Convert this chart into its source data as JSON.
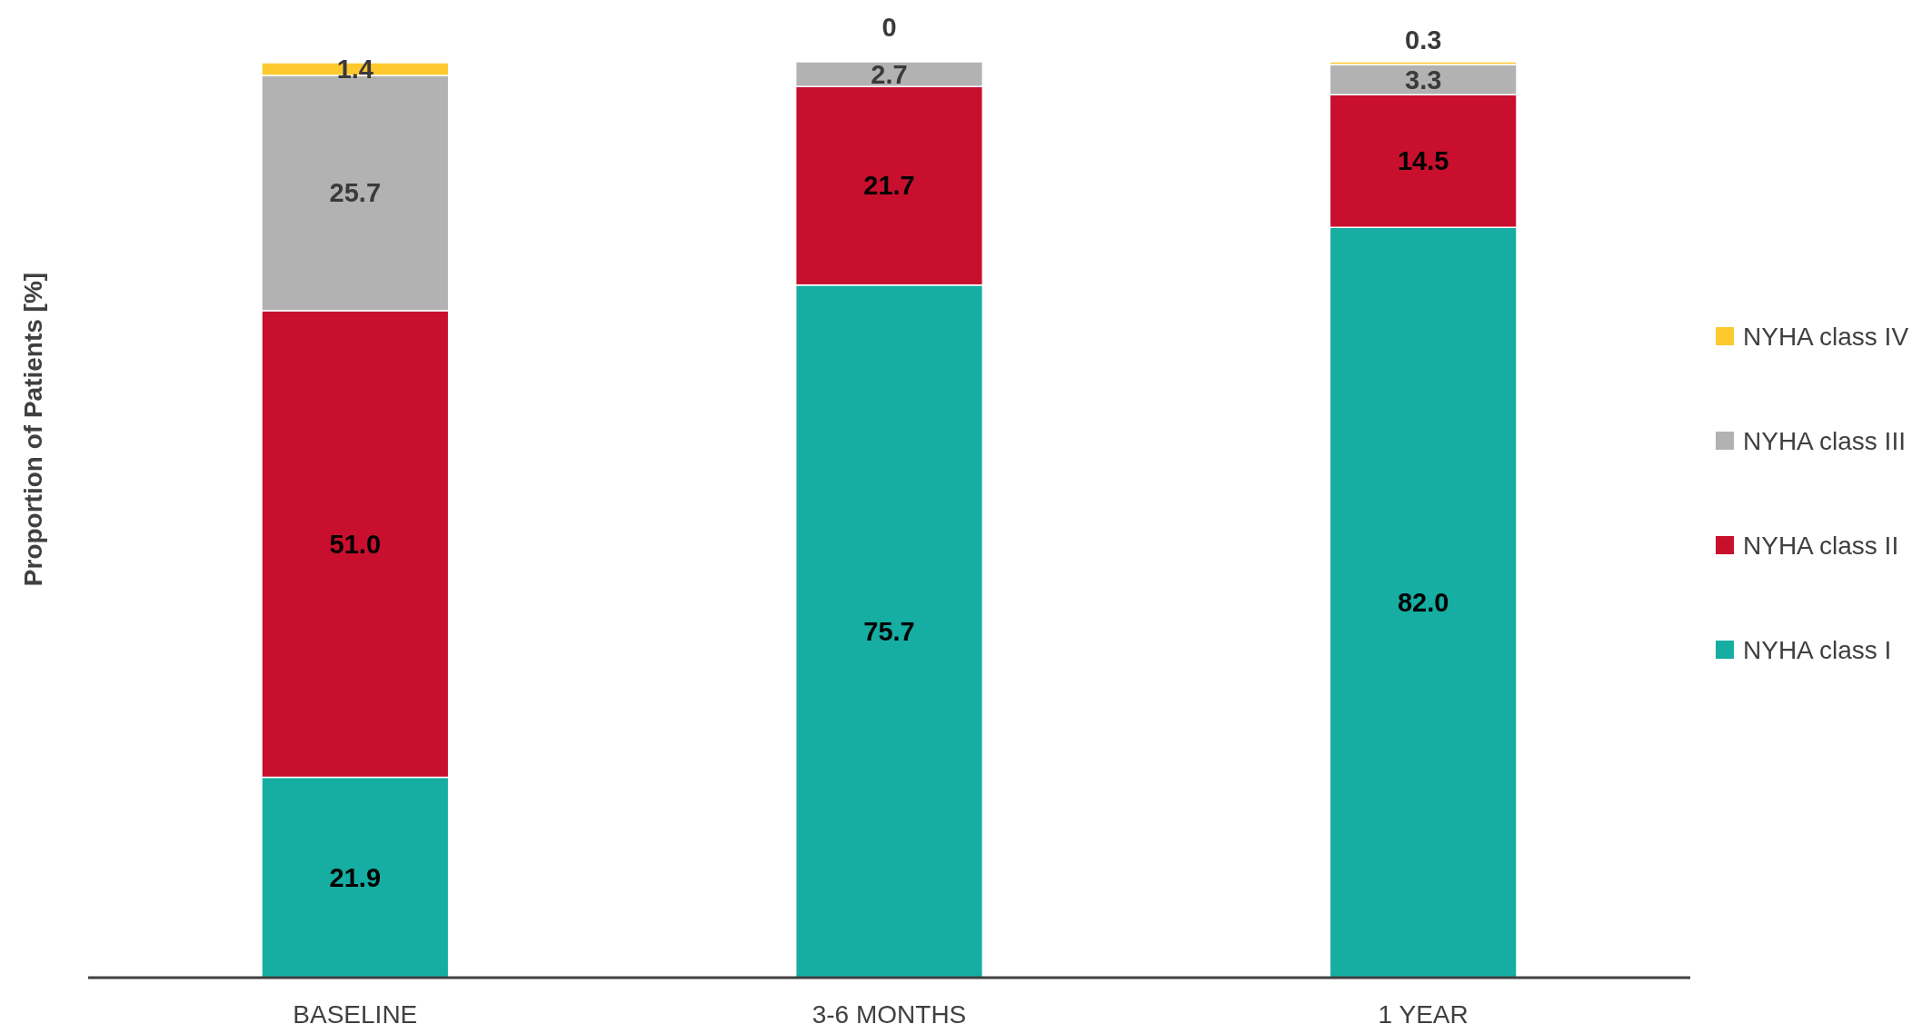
{
  "chart_data": {
    "type": "bar",
    "stacked": true,
    "ylabel": "Proportion of Patients [%]",
    "categories": [
      "BASELINE",
      "3-6 MONTHS",
      "1 YEAR"
    ],
    "ylim": [
      0,
      100
    ],
    "tick_labels": "x",
    "legend": "right",
    "series": [
      {
        "name": "NYHA class I",
        "color": "#16ada2",
        "values": [
          21.9,
          75.7,
          82.0
        ],
        "value_labels": [
          "21.9",
          "75.7",
          "82.0"
        ]
      },
      {
        "name": "NYHA class II",
        "color": "#c8102e",
        "values": [
          51.0,
          21.7,
          14.5
        ],
        "value_labels": [
          "51.0",
          "21.7",
          "14.5"
        ]
      },
      {
        "name": "NYHA class III",
        "color": "#b2b2b2",
        "values": [
          25.7,
          2.7,
          3.3
        ],
        "value_labels": [
          "25.7",
          "2.7",
          "3.3"
        ]
      },
      {
        "name": "NYHA class IV",
        "color": "#fec92e",
        "values": [
          1.4,
          0,
          0.3
        ],
        "value_labels": [
          "1.4",
          "0",
          "0.3"
        ]
      }
    ]
  }
}
